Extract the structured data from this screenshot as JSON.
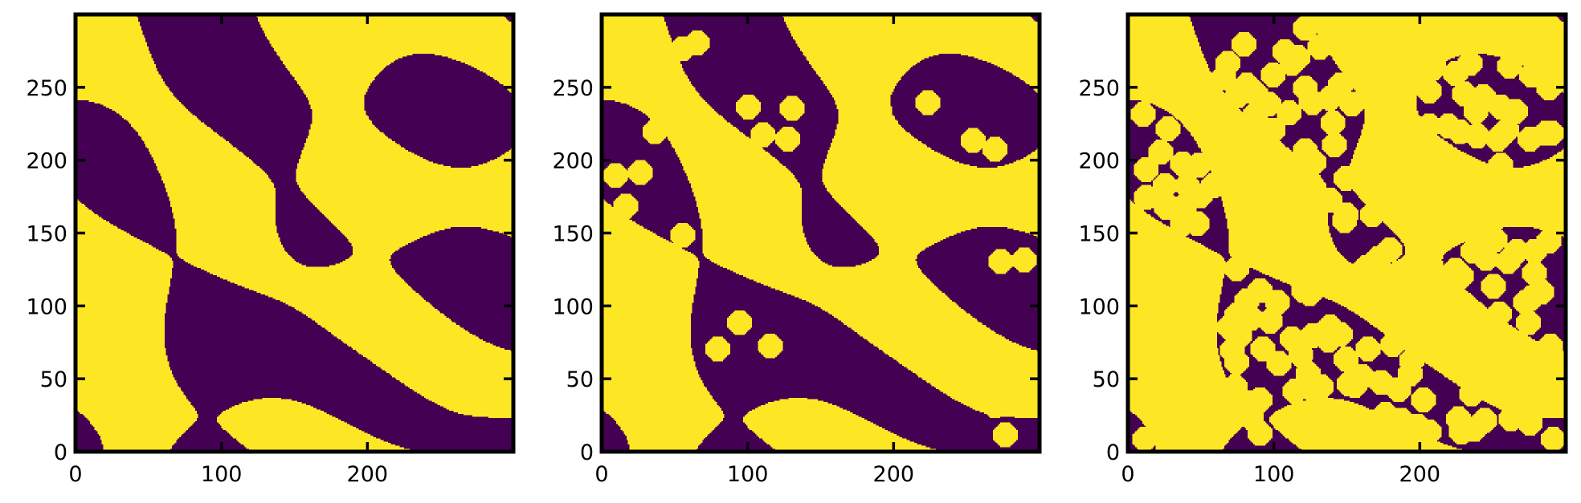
{
  "figure": {
    "background": "#ffffff"
  },
  "chart_data": [
    {
      "type": "heatmap",
      "title": "",
      "xlabel": "",
      "ylabel": "",
      "xlim": [
        0,
        300
      ],
      "ylim": [
        0,
        300
      ],
      "x_ticks": [
        "0",
        "100",
        "200"
      ],
      "y_ticks": [
        "0",
        "50",
        "100",
        "150",
        "200",
        "250"
      ],
      "origin": "lower",
      "values": [
        0,
        1
      ],
      "colors": {
        "0": "#440154",
        "1": "#fde725"
      },
      "content": "binary porous structure (random blobs)",
      "seed": 7,
      "inserted_particles": 0,
      "grid": false,
      "legend": false
    },
    {
      "type": "heatmap",
      "title": "",
      "xlabel": "",
      "ylabel": "",
      "xlim": [
        0,
        300
      ],
      "ylim": [
        0,
        300
      ],
      "x_ticks": [
        "0",
        "100",
        "200"
      ],
      "y_ticks": [
        "0",
        "50",
        "100",
        "150",
        "200",
        "250"
      ],
      "origin": "lower",
      "values": [
        0,
        1
      ],
      "colors": {
        "0": "#440154",
        "1": "#fde725"
      },
      "content": "same structure with added octagonal particles",
      "seed": 7,
      "inserted_particles": 22,
      "particle_diameter": 16,
      "grid": false,
      "legend": false
    },
    {
      "type": "heatmap",
      "title": "",
      "xlabel": "",
      "ylabel": "",
      "xlim": [
        0,
        300
      ],
      "ylim": [
        0,
        300
      ],
      "x_ticks": [
        "0",
        "100",
        "200"
      ],
      "y_ticks": [
        "0",
        "50",
        "100",
        "150",
        "200",
        "250"
      ],
      "origin": "lower",
      "values": [
        0,
        1
      ],
      "colors": {
        "0": "#440154",
        "1": "#fde725"
      },
      "content": "same structure densely filled with octagonal particles",
      "seed": 7,
      "inserted_particles": 170,
      "particle_diameter": 16,
      "grid": false,
      "legend": false
    }
  ]
}
